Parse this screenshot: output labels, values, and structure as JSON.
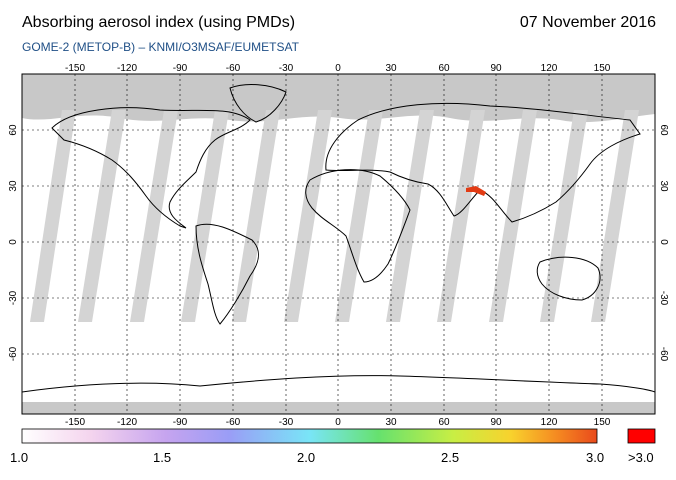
{
  "header": {
    "title": "Absorbing aerosol index (using PMDs)",
    "date": "07 November 2016",
    "subtitle": "GOME-2 (METOP-B)  –  KNMI/O3MSAF/EUMETSAT"
  },
  "map": {
    "lon_ticks": [
      "-150",
      "-120",
      "-90",
      "-60",
      "-30",
      "0",
      "30",
      "60",
      "90",
      "120",
      "150"
    ],
    "lat_ticks": [
      "60",
      "30",
      "0",
      "-30",
      "-60"
    ],
    "colors": {
      "ocean": "#ffffff",
      "no_data": "#c8c8c8",
      "orbit_gap": "#d4d4d4",
      "land": "#000000",
      "grid": "#000000"
    }
  },
  "legend": {
    "labels": [
      "1.0",
      "1.5",
      "2.0",
      "2.5",
      "3.0"
    ],
    "over_label": ">3.0",
    "gradient_colors": [
      "#ffffff",
      "#f4d4ee",
      "#c6a4ef",
      "#9a9df6",
      "#79e5f7",
      "#66e16e",
      "#c8ee44",
      "#f8d22d",
      "#f58a21",
      "#e94a1c"
    ],
    "over_color": "#ff0000"
  }
}
